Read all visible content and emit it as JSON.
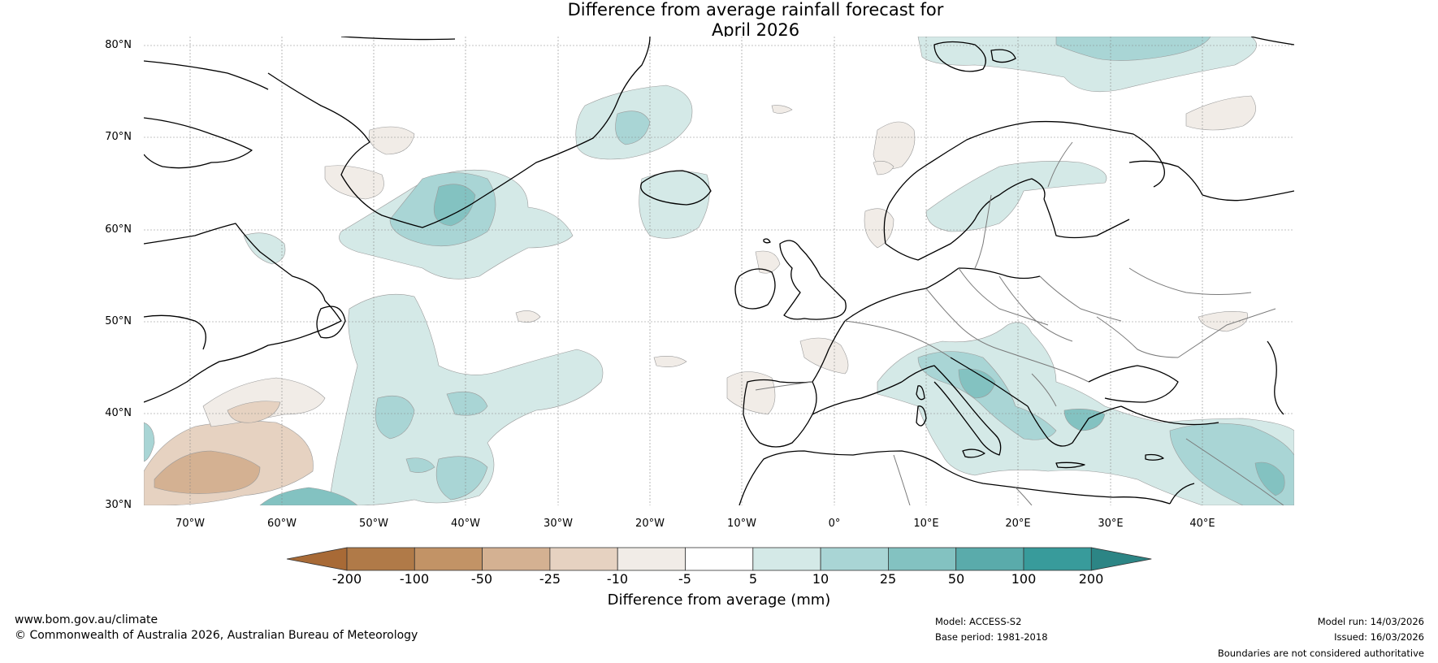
{
  "title": {
    "line1": "Difference from average rainfall forecast for",
    "line2": "April 2026"
  },
  "map": {
    "lat_labels": [
      "80°N",
      "70°N",
      "60°N",
      "50°N",
      "40°N",
      "30°N"
    ],
    "lon_labels": [
      "70°W",
      "60°W",
      "50°W",
      "40°W",
      "30°W",
      "20°W",
      "10°W",
      "0°",
      "10°E",
      "20°E",
      "30°E",
      "40°E"
    ],
    "extent": {
      "lon_min": -75,
      "lon_max": 50,
      "lat_min": 30,
      "lat_max": 81
    }
  },
  "colorbar": {
    "ticks": [
      "-200",
      "-100",
      "-50",
      "-25",
      "-10",
      "-5",
      "5",
      "10",
      "25",
      "50",
      "100",
      "200"
    ],
    "colors": [
      "#a86a36",
      "#b07a48",
      "#c29366",
      "#d4b192",
      "#e6d2c1",
      "#f1ece7",
      "#ffffff",
      "#d4e9e7",
      "#a9d5d5",
      "#83c2c1",
      "#5aabab",
      "#389b9b",
      "#2c8585"
    ],
    "title": "Difference from average (mm)"
  },
  "footer": {
    "website": "www.bom.gov.au/climate",
    "copyright": "© Commonwealth of Australia 2026, Australian Bureau of Meteorology",
    "model": "Model: ACCESS-S2",
    "base_period": "Base period: 1981-2018",
    "model_run": "Model run: 14/03/2026",
    "issued": "Issued: 16/03/2026",
    "disclaimer": "Boundaries are not considered authoritative"
  }
}
